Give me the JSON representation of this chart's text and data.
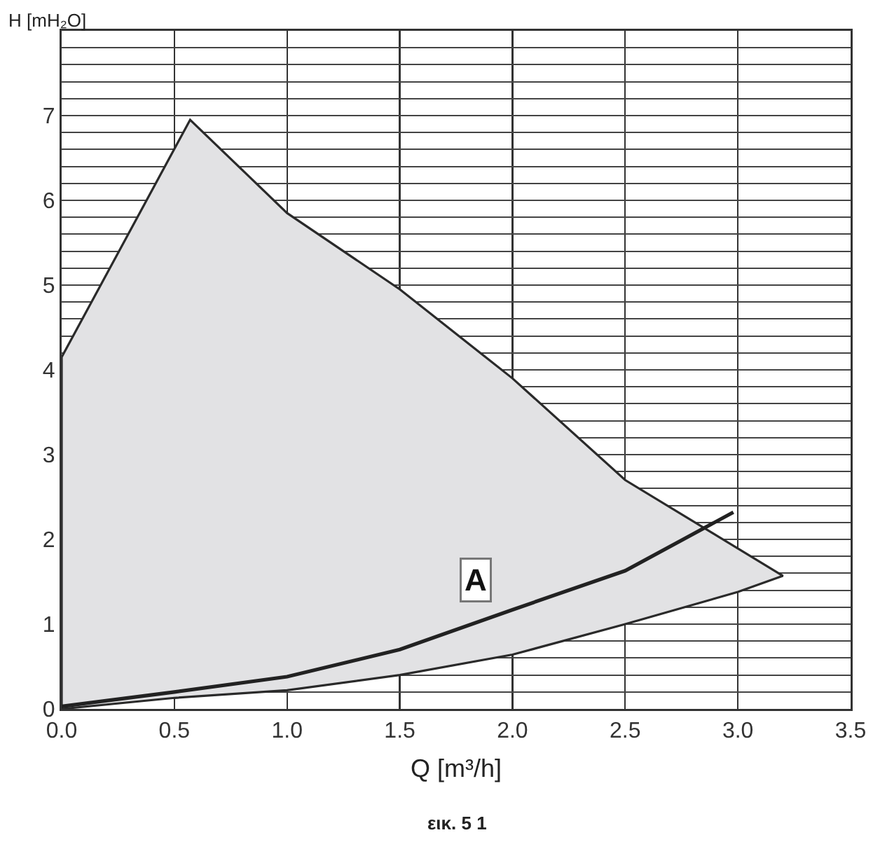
{
  "chart_data": {
    "type": "line",
    "ylabel": "H [mH₂O]",
    "xlabel": "Q [m³/h]",
    "xlim": [
      0,
      3.5
    ],
    "ylim": [
      0,
      8
    ],
    "xticks": [
      {
        "value": 0,
        "label": "0.0"
      },
      0.5,
      {
        "value": 1,
        "label": "1.0"
      },
      1.5,
      {
        "value": 2,
        "label": "2.0"
      },
      2.5,
      {
        "value": 3,
        "label": "3.0"
      },
      3.5
    ],
    "yticks": [
      0,
      {
        "value": 0.2,
        "label": null
      },
      {
        "value": 0.4,
        "label": null
      },
      {
        "value": 0.6,
        "label": null
      },
      {
        "value": 0.8,
        "label": null
      },
      1,
      {
        "value": 1.2,
        "label": null
      },
      {
        "value": 1.4,
        "label": null
      },
      {
        "value": 1.6,
        "label": null
      },
      {
        "value": 1.8,
        "label": null
      },
      2,
      {
        "value": 2.2,
        "label": null
      },
      {
        "value": 2.4,
        "label": null
      },
      {
        "value": 2.6,
        "label": null
      },
      {
        "value": 2.8,
        "label": null
      },
      3,
      {
        "value": 3.2,
        "label": null
      },
      {
        "value": 3.4,
        "label": null
      },
      {
        "value": 3.6,
        "label": null
      },
      {
        "value": 3.8,
        "label": null
      },
      4,
      {
        "value": 4.2,
        "label": null
      },
      {
        "value": 4.4,
        "label": null
      },
      {
        "value": 4.6,
        "label": null
      },
      {
        "value": 4.8,
        "label": null
      },
      5,
      {
        "value": 5.2,
        "label": null
      },
      {
        "value": 5.4,
        "label": null
      },
      {
        "value": 5.6,
        "label": null
      },
      {
        "value": 5.8,
        "label": null
      },
      6,
      {
        "value": 6.2,
        "label": null
      },
      {
        "value": 6.4,
        "label": null
      },
      {
        "value": 6.6,
        "label": null
      },
      {
        "value": 6.8,
        "label": null
      },
      7,
      {
        "value": 7.2,
        "label": null
      },
      {
        "value": 7.4,
        "label": null
      },
      {
        "value": 7.6,
        "label": null
      },
      {
        "value": 7.8,
        "label": null
      },
      {
        "value": 8,
        "label": null
      }
    ],
    "grid": true,
    "legend": false,
    "marker": "none",
    "line_style": "solid",
    "series": [
      {
        "type": "area",
        "color": "#e2e2e4",
        "x": [
          0,
          0,
          0.57,
          1,
          1.5,
          2,
          2.5,
          3.2,
          3,
          2.5,
          2,
          1.5,
          1,
          0.5,
          0
        ],
        "values": [
          0,
          4.15,
          6.95,
          5.85,
          4.95,
          3.9,
          2.7,
          1.57,
          1.38,
          1,
          0.64,
          0.4,
          0.22,
          0.13,
          0
        ]
      },
      {
        "color": "#222222",
        "x": [
          0,
          0.5,
          1,
          1.5,
          2,
          2.5,
          2.98
        ],
        "values": [
          0.03,
          0.2,
          0.38,
          0.7,
          1.17,
          1.63,
          2.32
        ]
      }
    ],
    "annotations": [
      {
        "text": "A",
        "x": 1.84,
        "y": 1.52
      },
      "εικ. 5 1"
    ]
  }
}
